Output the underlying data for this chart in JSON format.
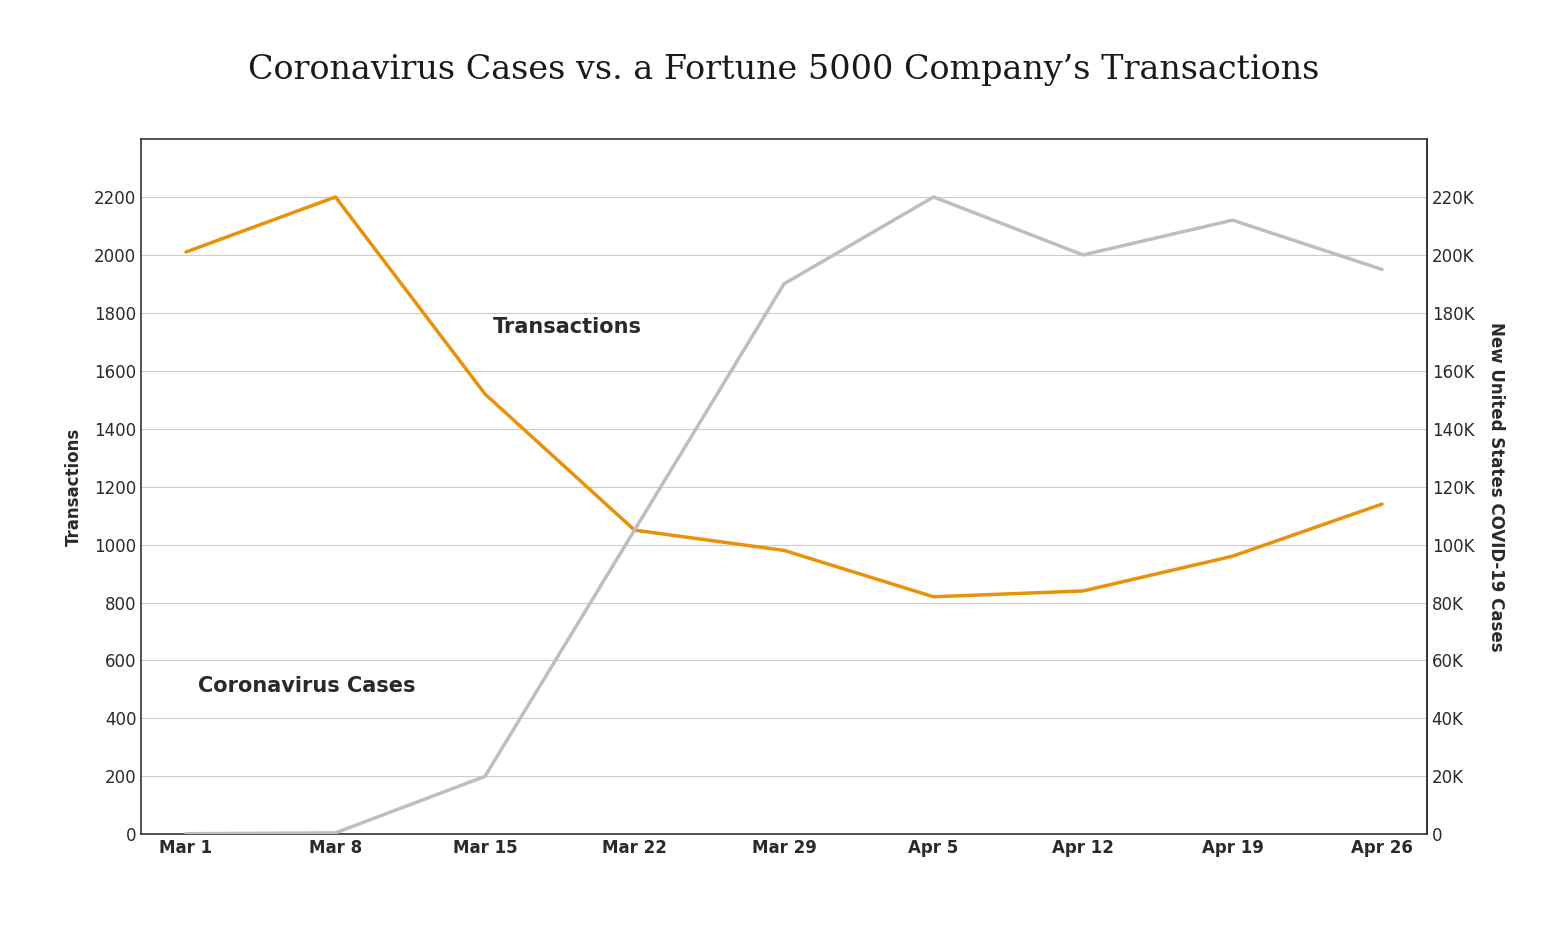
{
  "title": "Coronavirus Cases vs. a Fortune 5000 Company’s Transactions",
  "xlabel_dates": [
    "Mar 1",
    "Mar 8",
    "Mar 15",
    "Mar 22",
    "Mar 29",
    "Apr 5",
    "Apr 12",
    "Apr 19",
    "Apr 26"
  ],
  "transactions": [
    2010,
    2200,
    1520,
    1050,
    980,
    820,
    840,
    960,
    1140
  ],
  "covid_cases": [
    200,
    500,
    20000,
    105000,
    190000,
    220000,
    200000,
    212000,
    195000
  ],
  "transactions_color": "#E8920A",
  "covid_color": "#BEBEBE",
  "left_ylim": [
    0,
    2400
  ],
  "right_ylim": [
    0,
    240000
  ],
  "left_yticks": [
    0,
    200,
    400,
    600,
    800,
    1000,
    1200,
    1400,
    1600,
    1800,
    2000,
    2200
  ],
  "right_yticks": [
    0,
    20000,
    40000,
    60000,
    80000,
    100000,
    120000,
    140000,
    160000,
    180000,
    200000,
    220000
  ],
  "ylabel_left": "Transactions",
  "ylabel_right": "New United States COVID-19 Cases",
  "annotation_transactions": "Transactions",
  "annotation_covid": "Coronavirus Cases",
  "line_width": 2.5,
  "background_color": "#ffffff",
  "grid_color": "#cccccc",
  "title_fontsize": 24,
  "label_fontsize": 12,
  "tick_fontsize": 12,
  "annotation_fontsize": 15
}
